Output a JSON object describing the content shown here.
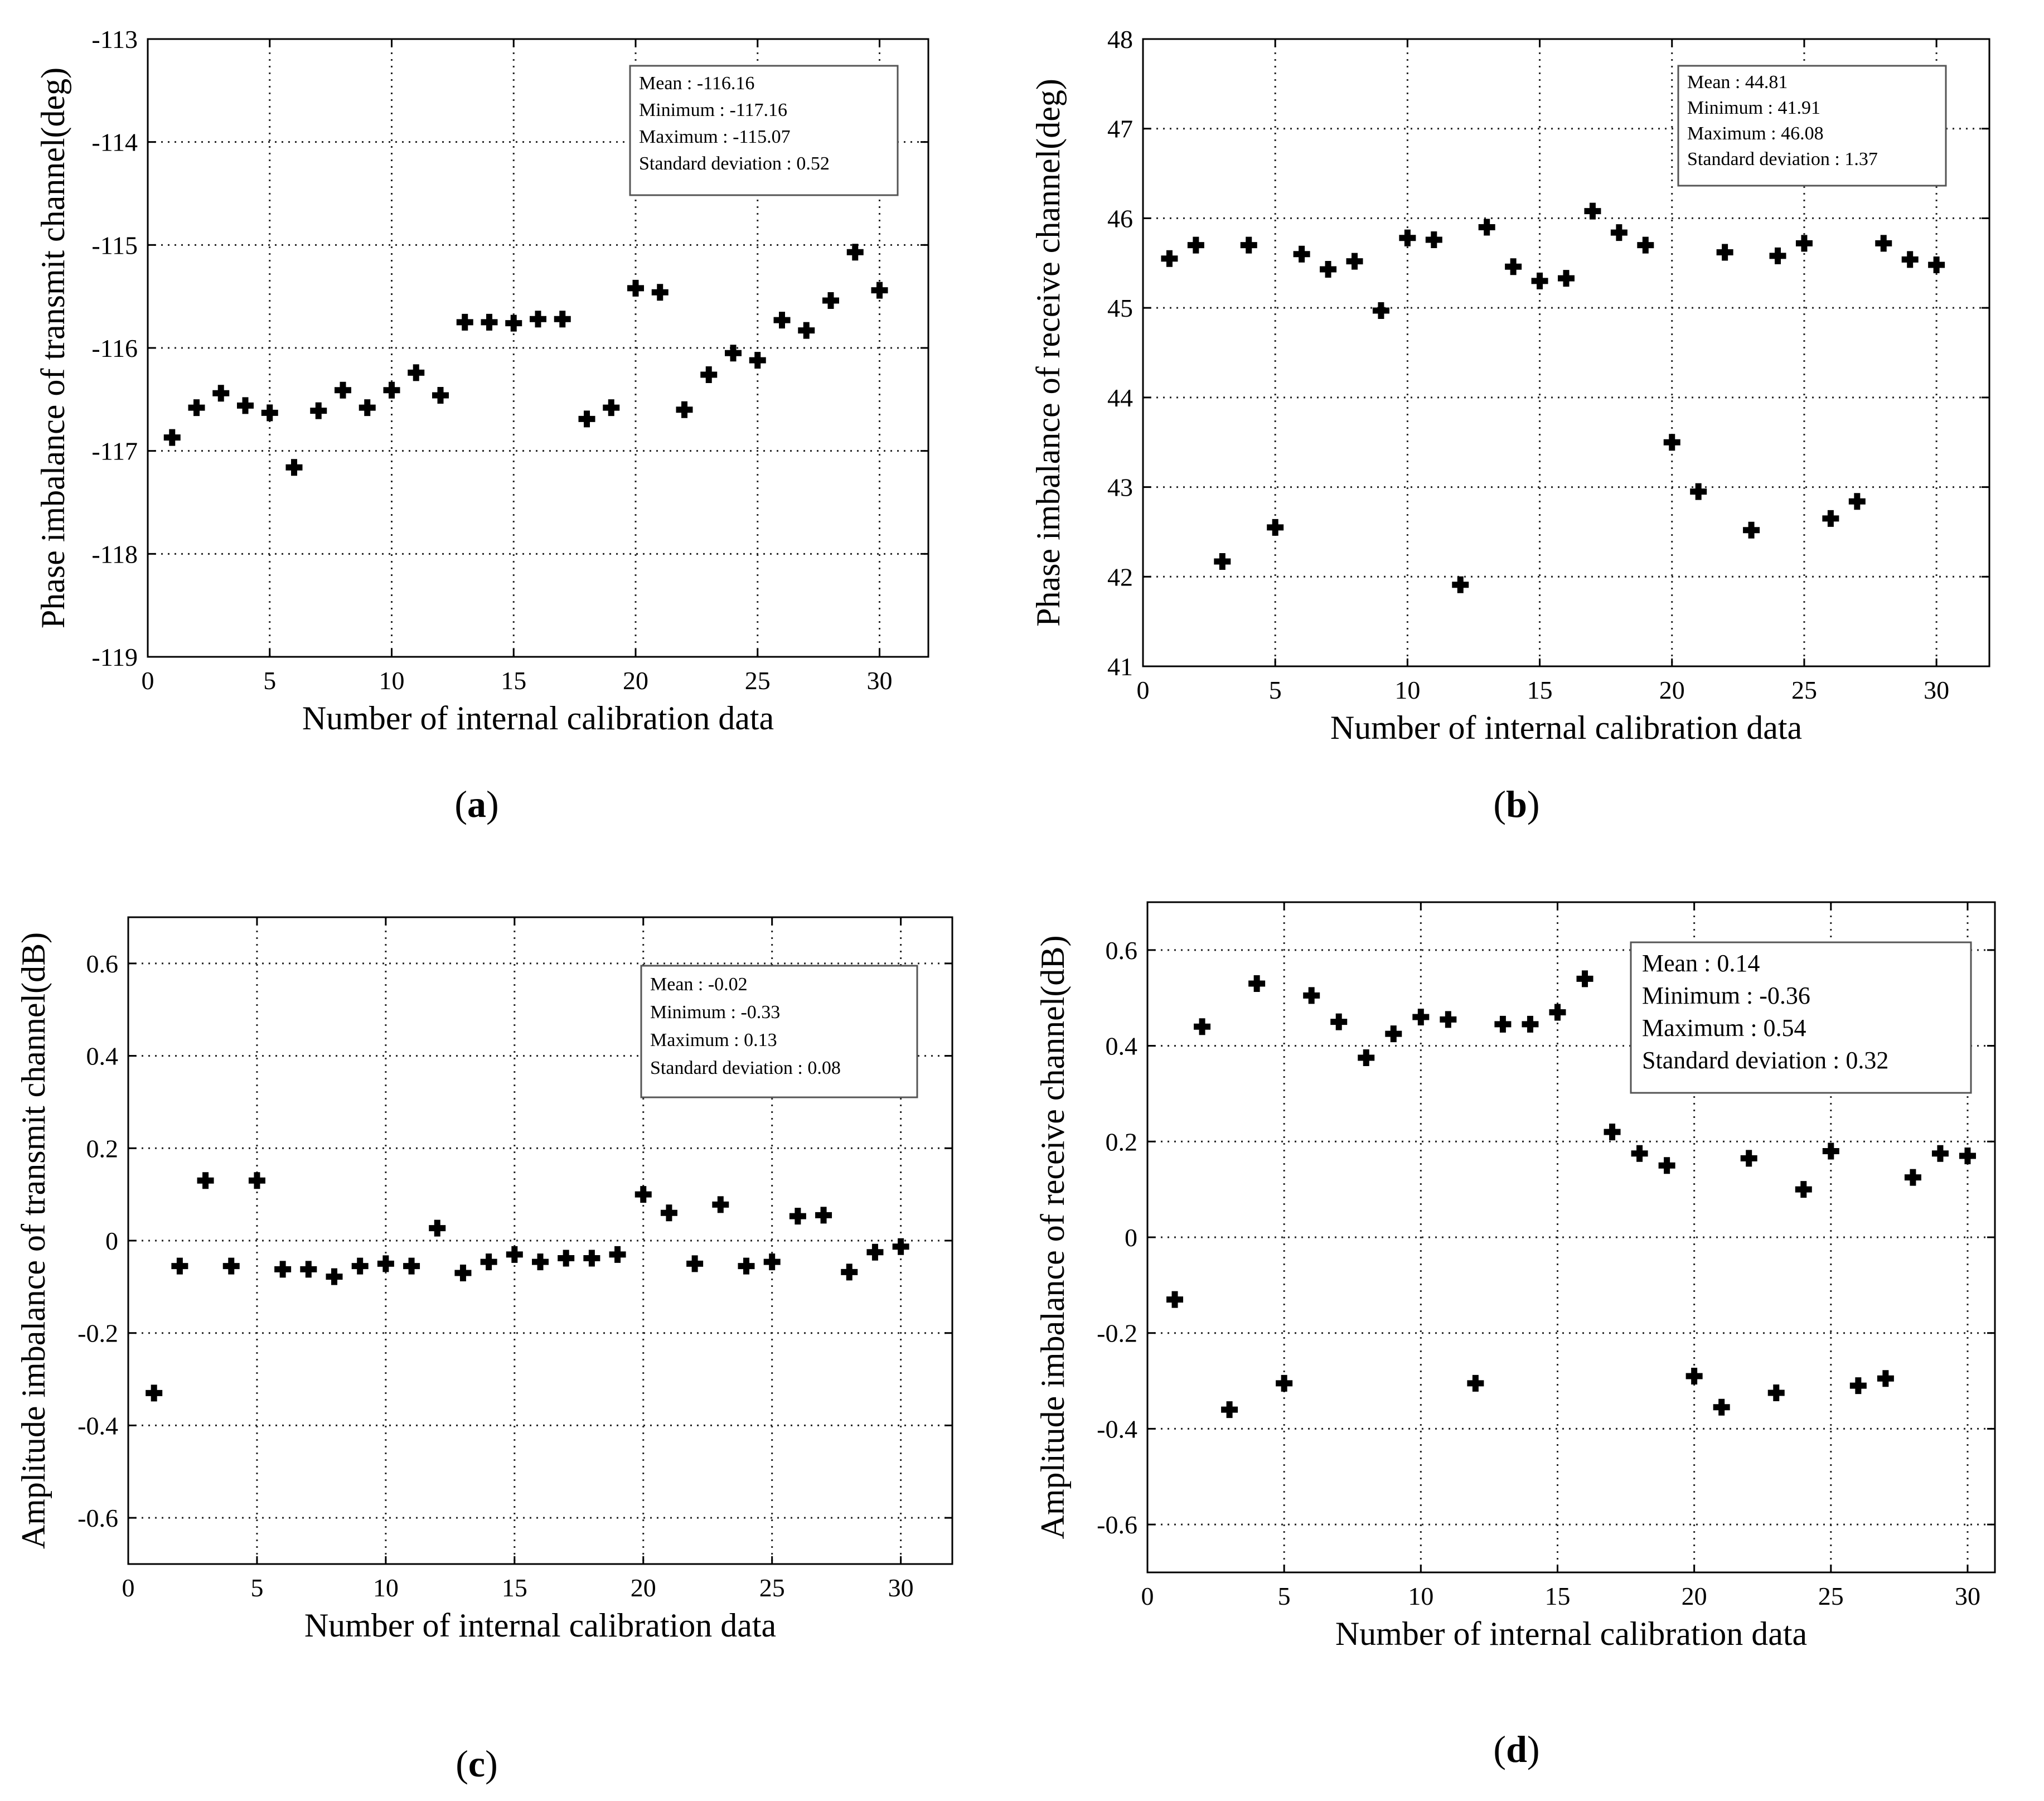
{
  "chart_data": [
    {
      "type": "scatter",
      "panel_label": "a",
      "xlabel": "Number of internal calibration data",
      "ylabel": "Phase imbalance of transmit channel(deg)",
      "xlim": [
        0,
        32
      ],
      "ylim": [
        -119,
        -113
      ],
      "xticks": [
        0,
        5,
        10,
        15,
        20,
        25,
        30
      ],
      "yticks": [
        -119,
        -118,
        -117,
        -116,
        -115,
        -114,
        -113
      ],
      "grid": true,
      "stats": {
        "lines": [
          "Mean : -116.16",
          "Minimum : -117.16",
          "Maximum : -115.07",
          "Standard deviation : 0.52"
        ],
        "placement": "top-right"
      },
      "x": [
        1,
        2,
        3,
        4,
        5,
        6,
        7,
        8,
        9,
        10,
        11,
        12,
        13,
        14,
        15,
        16,
        17,
        18,
        19,
        20,
        21,
        22,
        23,
        24,
        25,
        26,
        27,
        28,
        29,
        30
      ],
      "y": [
        -116.87,
        -116.58,
        -116.44,
        -116.56,
        -116.63,
        -117.16,
        -116.61,
        -116.41,
        -116.58,
        -116.41,
        -116.24,
        -116.46,
        -115.75,
        -115.75,
        -115.76,
        -115.72,
        -115.72,
        -116.69,
        -116.58,
        -115.42,
        -115.46,
        -116.6,
        -116.26,
        -116.05,
        -116.12,
        -115.73,
        -115.83,
        -115.54,
        -115.07,
        -115.44
      ]
    },
    {
      "type": "scatter",
      "panel_label": "b",
      "xlabel": "Number of internal calibration data",
      "ylabel": "Phase imbalance of receive channel(deg)",
      "xlim": [
        0,
        32
      ],
      "ylim": [
        41,
        48
      ],
      "xticks": [
        0,
        5,
        10,
        15,
        20,
        25,
        30
      ],
      "yticks": [
        41,
        42,
        43,
        44,
        45,
        46,
        47,
        48
      ],
      "grid": true,
      "stats": {
        "lines": [
          "Mean : 44.81",
          "Minimum : 41.91",
          "Maximum : 46.08",
          "Standard deviation : 1.37"
        ],
        "placement": "top-right"
      },
      "x": [
        1,
        2,
        3,
        4,
        5,
        6,
        7,
        8,
        9,
        10,
        11,
        12,
        13,
        14,
        15,
        16,
        17,
        18,
        19,
        20,
        21,
        22,
        23,
        24,
        25,
        26,
        27,
        28,
        29,
        30
      ],
      "y": [
        45.55,
        45.7,
        42.17,
        45.7,
        42.55,
        45.6,
        45.43,
        45.52,
        44.97,
        45.78,
        45.76,
        41.91,
        45.9,
        45.46,
        45.3,
        45.33,
        46.08,
        45.84,
        45.7,
        43.5,
        42.95,
        45.62,
        42.52,
        45.58,
        45.72,
        42.65,
        42.84,
        45.72,
        45.54,
        45.48
      ]
    },
    {
      "type": "scatter",
      "panel_label": "c",
      "xlabel": "Number of internal calibration data",
      "ylabel": "Amplitude imbalance of transmit channel(dB)",
      "xlim": [
        0,
        32
      ],
      "ylim": [
        -0.7,
        0.7
      ],
      "xticks": [
        0,
        5,
        10,
        15,
        20,
        25,
        30
      ],
      "yticks": [
        -0.6,
        -0.4,
        -0.2,
        0,
        0.2,
        0.4,
        0.6
      ],
      "ytick_labels": [
        "-0.6",
        "-0.4",
        "-0.2",
        "0",
        "0.2",
        "0.4",
        "0.6"
      ],
      "grid": true,
      "stats": {
        "lines": [
          "Mean : -0.02",
          "Minimum : -0.33",
          "Maximum : 0.13",
          "Standard deviation : 0.08"
        ],
        "placement": "top-right"
      },
      "x": [
        1,
        2,
        3,
        4,
        5,
        6,
        7,
        8,
        9,
        10,
        11,
        12,
        13,
        14,
        15,
        16,
        17,
        18,
        19,
        20,
        21,
        22,
        23,
        24,
        25,
        26,
        27,
        28,
        29,
        30
      ],
      "y": [
        -0.33,
        -0.055,
        0.13,
        -0.055,
        0.13,
        -0.062,
        -0.062,
        -0.078,
        -0.055,
        -0.05,
        -0.055,
        0.027,
        -0.07,
        -0.046,
        -0.03,
        -0.046,
        -0.038,
        -0.038,
        -0.03,
        0.1,
        0.06,
        -0.05,
        0.078,
        -0.055,
        -0.046,
        0.053,
        0.055,
        -0.068,
        -0.025,
        -0.013
      ]
    },
    {
      "type": "scatter",
      "panel_label": "d",
      "xlabel": "Number of internal calibration data",
      "ylabel": "Amplitude imbalance of receive channel(dB)",
      "xlim": [
        0,
        31
      ],
      "ylim": [
        -0.7,
        0.7
      ],
      "xticks": [
        0,
        5,
        10,
        15,
        20,
        25,
        30
      ],
      "yticks": [
        -0.6,
        -0.4,
        -0.2,
        0,
        0.2,
        0.4,
        0.6
      ],
      "ytick_labels": [
        "-0.6",
        "-0.4",
        "-0.2",
        "0",
        "0.2",
        "0.4",
        "0.6"
      ],
      "grid": true,
      "stats": {
        "lines": [
          "Mean : 0.14",
          "Minimum : -0.36",
          "Maximum : 0.54",
          "Standard deviation : 0.32"
        ],
        "placement": "top-right"
      },
      "x": [
        1,
        2,
        3,
        4,
        5,
        6,
        7,
        8,
        9,
        10,
        11,
        12,
        13,
        14,
        15,
        16,
        17,
        18,
        19,
        20,
        21,
        22,
        23,
        24,
        25,
        26,
        27,
        28,
        29,
        30
      ],
      "y": [
        -0.13,
        0.44,
        -0.36,
        0.53,
        -0.305,
        0.505,
        0.45,
        0.375,
        0.425,
        0.46,
        0.455,
        -0.305,
        0.445,
        0.445,
        0.47,
        0.54,
        0.22,
        0.175,
        0.15,
        -0.29,
        -0.355,
        0.165,
        -0.325,
        0.1,
        0.18,
        -0.31,
        -0.295,
        0.125,
        0.175,
        0.17
      ]
    }
  ]
}
